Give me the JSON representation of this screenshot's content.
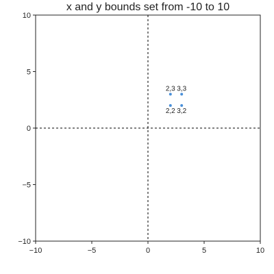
{
  "chart_data": {
    "type": "scatter",
    "title": "x and y bounds set from -10 to 10",
    "xlabel": "",
    "ylabel": "",
    "xlim": [
      -10,
      10
    ],
    "ylim": [
      -10,
      10
    ],
    "xticks": [
      -10,
      -5,
      0,
      5,
      10
    ],
    "yticks": [
      -10,
      -5,
      0,
      5,
      10
    ],
    "xtick_labels": [
      "−10",
      "−5",
      "0",
      "5",
      "10"
    ],
    "ytick_labels": [
      "−10",
      "−5",
      "0",
      "5",
      "10"
    ],
    "grid": false,
    "zero_lines": true,
    "point_color": "#4a90d9",
    "points": [
      {
        "x": 2,
        "y": 3,
        "label": "2,3"
      },
      {
        "x": 3,
        "y": 3,
        "label": "3,3"
      },
      {
        "x": 2,
        "y": 2,
        "label": "2,2"
      },
      {
        "x": 3,
        "y": 2,
        "label": "3,2"
      }
    ]
  }
}
